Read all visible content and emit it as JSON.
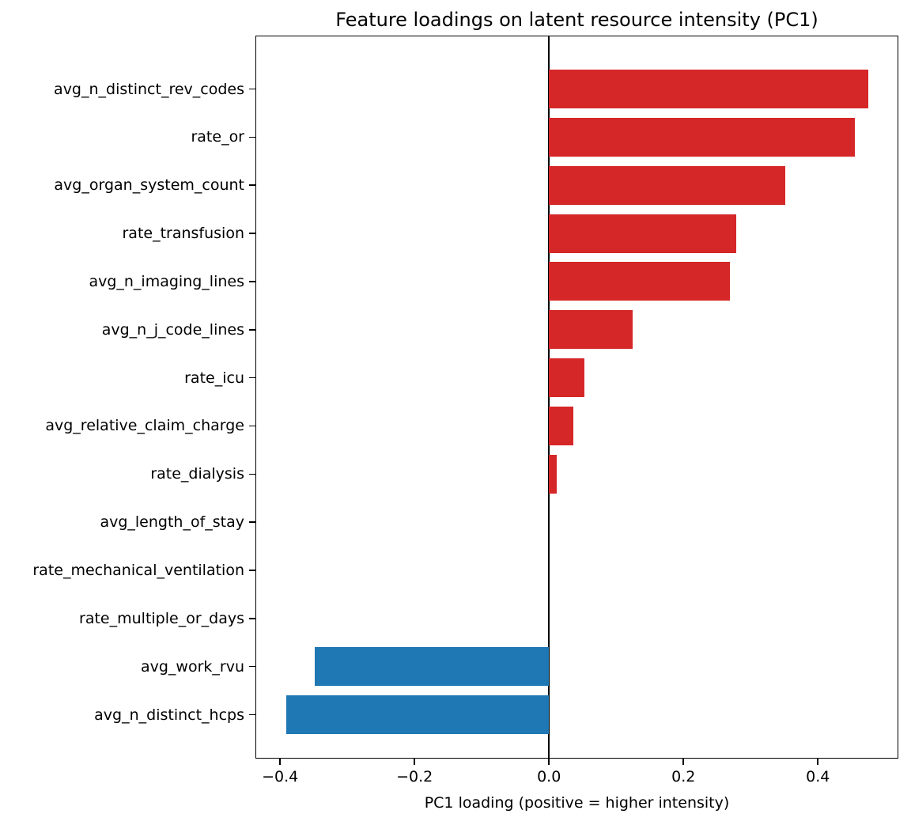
{
  "title": "Feature loadings on latent resource intensity (PC1)",
  "chart_data": {
    "type": "bar",
    "orientation": "horizontal",
    "title": "Feature loadings on latent resource intensity (PC1)",
    "xlabel": "PC1 loading (positive = higher intensity)",
    "ylabel": "",
    "categories": [
      "avg_n_distinct_rev_codes",
      "rate_or",
      "avg_organ_system_count",
      "rate_transfusion",
      "avg_n_imaging_lines",
      "avg_n_j_code_lines",
      "rate_icu",
      "avg_relative_claim_charge",
      "rate_dialysis",
      "avg_length_of_stay",
      "rate_mechanical_ventilation",
      "rate_multiple_or_days",
      "avg_work_rvu",
      "avg_n_distinct_hcps"
    ],
    "values": [
      0.475,
      0.455,
      0.351,
      0.278,
      0.269,
      0.124,
      0.053,
      0.036,
      0.011,
      0.0,
      0.0,
      0.0,
      -0.348,
      -0.391
    ],
    "xlim": [
      -0.4355,
      0.5171
    ],
    "xticks": [
      -0.4,
      -0.2,
      0.0,
      0.2,
      0.4
    ],
    "xtick_labels": [
      "−0.4",
      "−0.2",
      "0.0",
      "0.2",
      "0.4"
    ],
    "positive_color": "#d62728",
    "negative_color": "#1f77b4",
    "zero_line": true,
    "grid": false,
    "legend": null
  }
}
